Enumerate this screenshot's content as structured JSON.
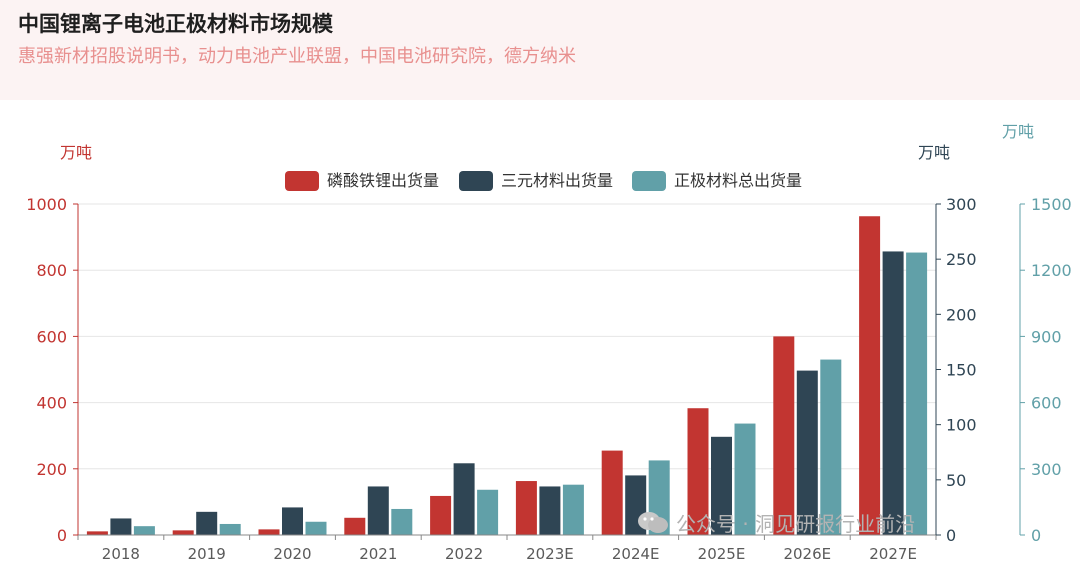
{
  "header": {
    "title": "中国锂离子电池正极材料市场规模",
    "source": "惠强新材招股说明书，动力电池产业联盟，中国电池研究院，德方纳米"
  },
  "watermark": {
    "text": "公众号 · 洞见研报行业前沿"
  },
  "colors": {
    "lfp": "#c23531",
    "ternary": "#2f4554",
    "total": "#61a0a8",
    "left_axis": "#c23531",
    "right_axis_1": "#2f4554",
    "right_axis_2": "#61a0a8"
  },
  "chart_data": {
    "type": "bar",
    "categories": [
      "2018",
      "2019",
      "2020",
      "2021",
      "2022",
      "2023E",
      "2024E",
      "2025E",
      "2026E",
      "2027E"
    ],
    "units": {
      "left": "万吨",
      "right_1": "万吨",
      "right_2": "万吨"
    },
    "axes": {
      "left": {
        "min": 0,
        "max": 1000,
        "ticks": [
          0,
          200,
          400,
          600,
          800,
          1000
        ]
      },
      "right_1": {
        "min": 0,
        "max": 300,
        "ticks": [
          0,
          50,
          100,
          150,
          200,
          250,
          300
        ]
      },
      "right_2": {
        "min": 0,
        "max": 1500,
        "ticks": [
          0,
          300,
          600,
          900,
          1200,
          1500
        ]
      }
    },
    "series": [
      {
        "name": "磷酸铁锂出货量",
        "axis": "left",
        "values": [
          11,
          14,
          17,
          52,
          118,
          163,
          255,
          383,
          600,
          963
        ]
      },
      {
        "name": "三元材料出货量",
        "axis": "right_1",
        "values": [
          15,
          21,
          25,
          44,
          65,
          44,
          54,
          89,
          149,
          257
        ]
      },
      {
        "name": "正极材料总出货量",
        "axis": "right_2",
        "values": [
          40,
          50,
          60,
          118,
          205,
          228,
          338,
          505,
          795,
          1280
        ]
      }
    ],
    "legend_position": "top-center",
    "grid": true
  }
}
